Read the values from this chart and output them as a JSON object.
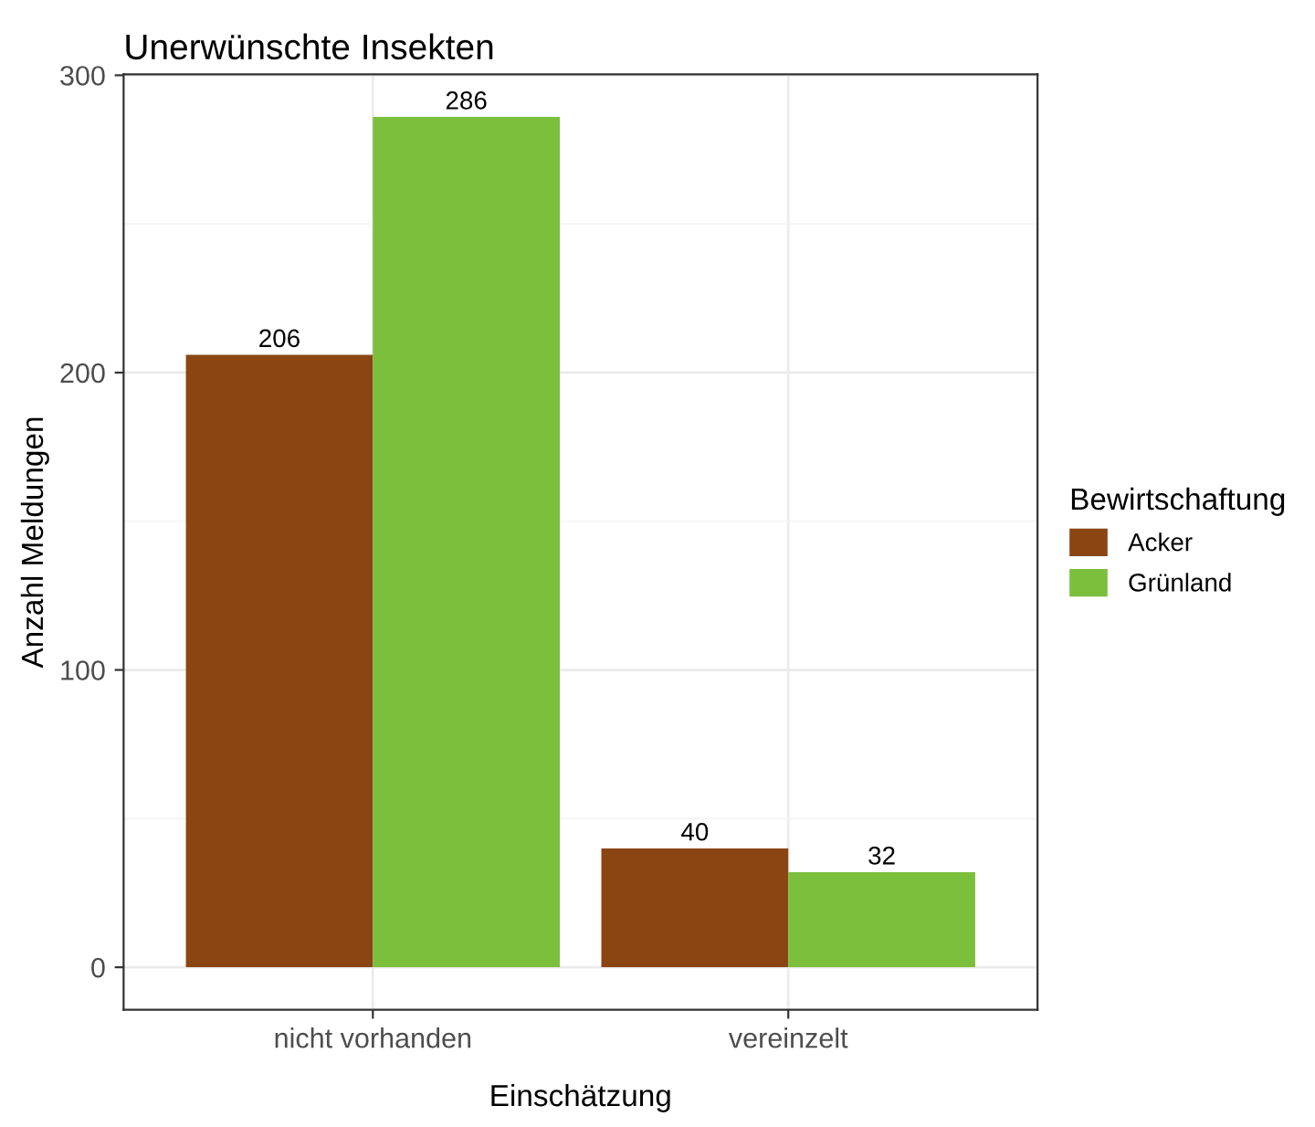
{
  "chart_data": {
    "type": "bar",
    "title": "Unerwünschte Insekten",
    "xlabel": "Einschätzung",
    "ylabel": "Anzahl Meldungen",
    "legend_title": "Bewirtschaftung",
    "categories": [
      "nicht vorhanden",
      "vereinzelt"
    ],
    "series": [
      {
        "name": "Acker",
        "color": "#8b4513",
        "values": [
          206,
          40
        ]
      },
      {
        "name": "Grünland",
        "color": "#7cbf3c",
        "values": [
          286,
          32
        ]
      }
    ],
    "ylim": [
      -14.3,
      300.3
    ],
    "yticks": [
      0,
      {
        "value": 50,
        "label": null
      },
      100,
      {
        "value": 150,
        "label": null
      },
      200,
      {
        "value": 250,
        "label": null
      },
      300
    ],
    "grid": true,
    "legend": "right",
    "data_labels": true
  }
}
